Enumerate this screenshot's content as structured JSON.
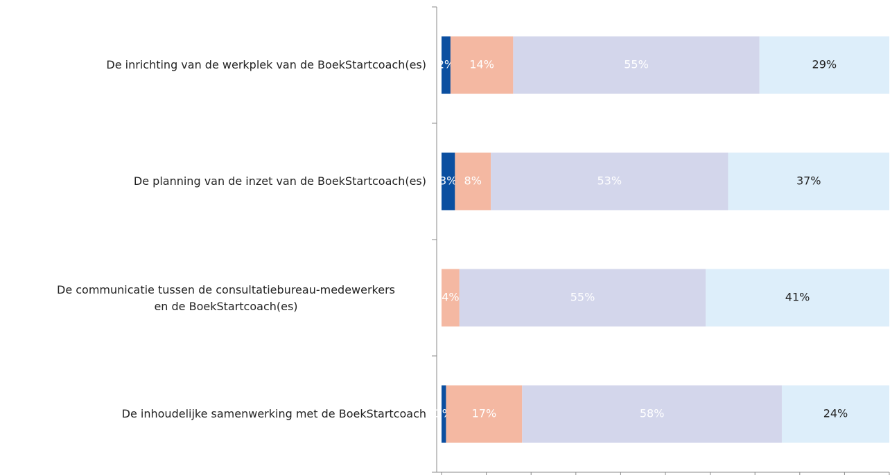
{
  "chart_data": {
    "type": "stacked-barh",
    "categories": [
      "De inrichting van de werkplek van de BoekStartcoach(es)",
      "De planning van de inzet van de BoekStartcoach(es)",
      "De communicatie tussen de consultatiebureau-medewerkers\nen de BoekStartcoach(es)",
      "De inhoudelijke samenwerking met de BoekStartcoach"
    ],
    "series": [
      {
        "color": "#0b4fa0",
        "label_color": "#ffffff",
        "values": [
          2,
          3,
          0,
          1
        ],
        "value_labels": [
          "2%",
          "3%",
          null,
          "1%"
        ]
      },
      {
        "color": "#f4b8a2",
        "label_color": "#ffffff",
        "values": [
          14,
          8,
          4,
          17
        ],
        "value_labels": [
          "14%",
          "8%",
          "4%",
          "17%"
        ]
      },
      {
        "color": "#d3d6eb",
        "label_color": "#ffffff",
        "values": [
          55,
          53,
          55,
          58
        ],
        "value_labels": [
          "55%",
          "53%",
          "55%",
          "58%"
        ]
      },
      {
        "color": "#ddeefa",
        "label_color": "#222222",
        "values": [
          29,
          37,
          41,
          24
        ],
        "value_labels": [
          "29%",
          "37%",
          "41%",
          "24%"
        ]
      }
    ],
    "xlim": [
      0,
      100
    ],
    "xticks": [
      0,
      10,
      20,
      30,
      40,
      50,
      60,
      70,
      80,
      90,
      100
    ]
  }
}
